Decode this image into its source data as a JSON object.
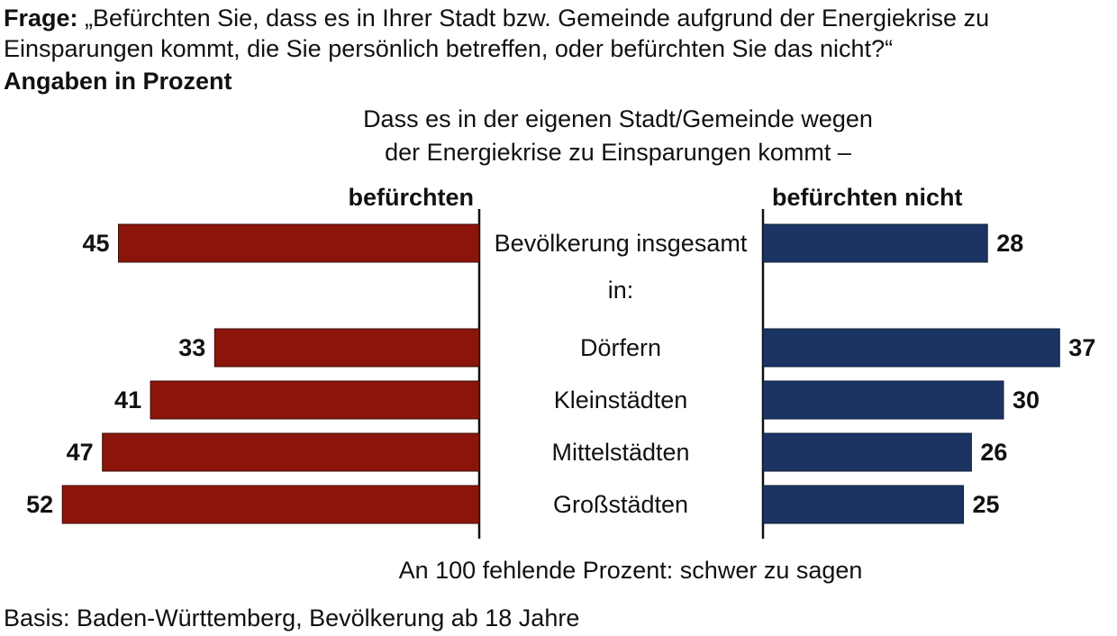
{
  "question": {
    "label": "Frage:",
    "line1": "„Befürchten Sie, dass es in Ihrer Stadt bzw. Gemeinde aufgrund der Energiekrise zu",
    "line2": "Einsparungen kommt, die Sie persönlich betreffen, oder befürchten Sie das nicht?“"
  },
  "unit_note": "Angaben in Prozent",
  "subtitle": {
    "line1": "Dass es in der eigenen Stadt/Gemeinde wegen",
    "line2": "der Energiekrise zu Einsparungen kommt –"
  },
  "footer_note": "An 100 fehlende Prozent: schwer zu sagen",
  "basis": "Basis: Baden-Württemberg, Bevölkerung ab 18 Jahre",
  "group_label": "in:",
  "colors": {
    "left": "#8B150A",
    "right": "#1B3464"
  },
  "chart_data": {
    "type": "bar",
    "orientation": "diverging-horizontal",
    "categories": [
      "Bevölkerung insgesamt",
      "Dörfern",
      "Kleinstädten",
      "Mittelstädten",
      "Großstädten"
    ],
    "series": [
      {
        "name": "befürchten",
        "values": [
          45,
          33,
          41,
          47,
          52
        ]
      },
      {
        "name": "befürchten nicht",
        "values": [
          28,
          37,
          30,
          26,
          25
        ]
      }
    ],
    "unit": "Prozent"
  }
}
